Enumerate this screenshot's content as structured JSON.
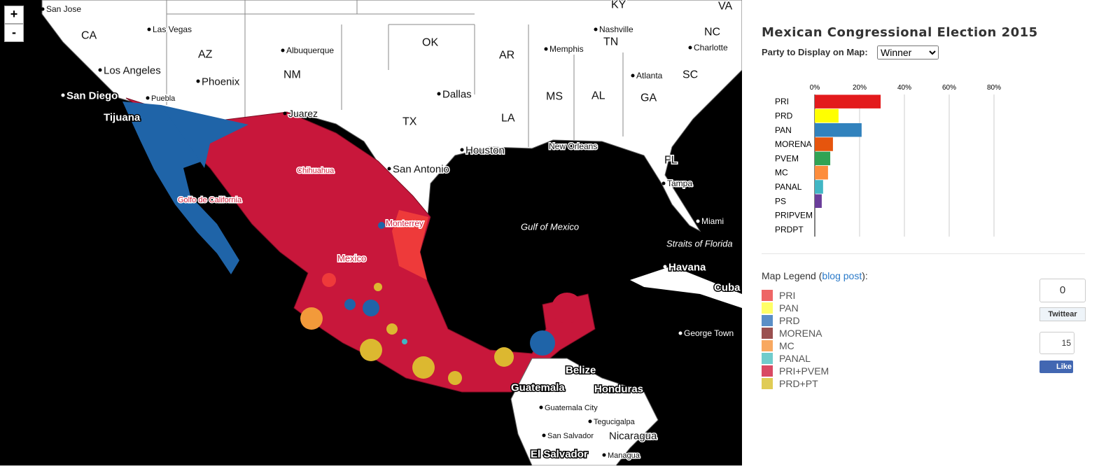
{
  "map": {
    "zoom": [
      "+",
      "-"
    ],
    "labels": [
      "San Jose",
      "CA",
      "Las Vegas",
      "AZ",
      "Los Angeles",
      "Phoenix",
      "San Diego",
      "Puebla",
      "Tijuana",
      "NM",
      "Albuquerque",
      "Juarez",
      "OK",
      "Dallas",
      "TX",
      "AR",
      "Memphis",
      "Nashville",
      "TN",
      "KY",
      "VA",
      "NC",
      "Charlotte",
      "SC",
      "Atlanta",
      "GA",
      "AL",
      "MS",
      "LA",
      "Houston",
      "New Orleans",
      "San Antonio",
      "FL",
      "Tampa",
      "Miami",
      "Gulf of Mexico",
      "Straits of Florida",
      "Havana",
      "Cuba",
      "George Town",
      "Chihuahua",
      "Golfo de California",
      "Monterrey",
      "Mexico",
      "Belize",
      "Honduras",
      "Guatemala",
      "Guatemala City",
      "Tegucigalpa",
      "San Salvador",
      "Nicaragua",
      "El Salvador",
      "Managua"
    ]
  },
  "panel": {
    "title": "Mexican Congressional Election 2015",
    "select_label": "Party to Display on Map:",
    "select_value": "Winner"
  },
  "chart_data": {
    "type": "bar",
    "orientation": "horizontal",
    "categories": [
      "PRI",
      "PRD",
      "PAN",
      "MORENA",
      "PVEM",
      "MC",
      "PANAL",
      "PS",
      "PRIPVEM",
      "PRDPT"
    ],
    "values": [
      29.4,
      10.6,
      20.9,
      8.1,
      6.9,
      5.9,
      3.7,
      3.1,
      0,
      0
    ],
    "colors": [
      "#e31a1c",
      "#ffff00",
      "#3182bd",
      "#e6550d",
      "#31a354",
      "#fd8d3c",
      "#41b6c4",
      "#6a3d9a",
      "#888888",
      "#888888"
    ],
    "xlim": [
      0,
      100
    ],
    "xticks": [
      {
        "value": 0,
        "label": "0%"
      },
      {
        "value": 20,
        "label": "20%"
      },
      {
        "value": 40,
        "label": "40%"
      },
      {
        "value": 60,
        "label": "60%"
      },
      {
        "value": 80,
        "label": "80%"
      }
    ],
    "grid": true
  },
  "legend": {
    "title": "Map Legend (",
    "link": "blog post",
    "title_end": "):",
    "items": [
      {
        "name": "PRI",
        "color": "#ee6666"
      },
      {
        "name": "PAN",
        "color": "#ffff66"
      },
      {
        "name": "PRD",
        "color": "#5b8fc7"
      },
      {
        "name": "MORENA",
        "color": "#9a5050"
      },
      {
        "name": "MC",
        "color": "#f8a860"
      },
      {
        "name": "PANAL",
        "color": "#70cccc"
      },
      {
        "name": "PRI+PVEM",
        "color": "#d94a63"
      },
      {
        "name": "PRD+PT",
        "color": "#e0cc55"
      }
    ]
  },
  "social": {
    "tweet_count": "0",
    "tweet": "Twittear",
    "like_count": "15",
    "like": "Like"
  }
}
